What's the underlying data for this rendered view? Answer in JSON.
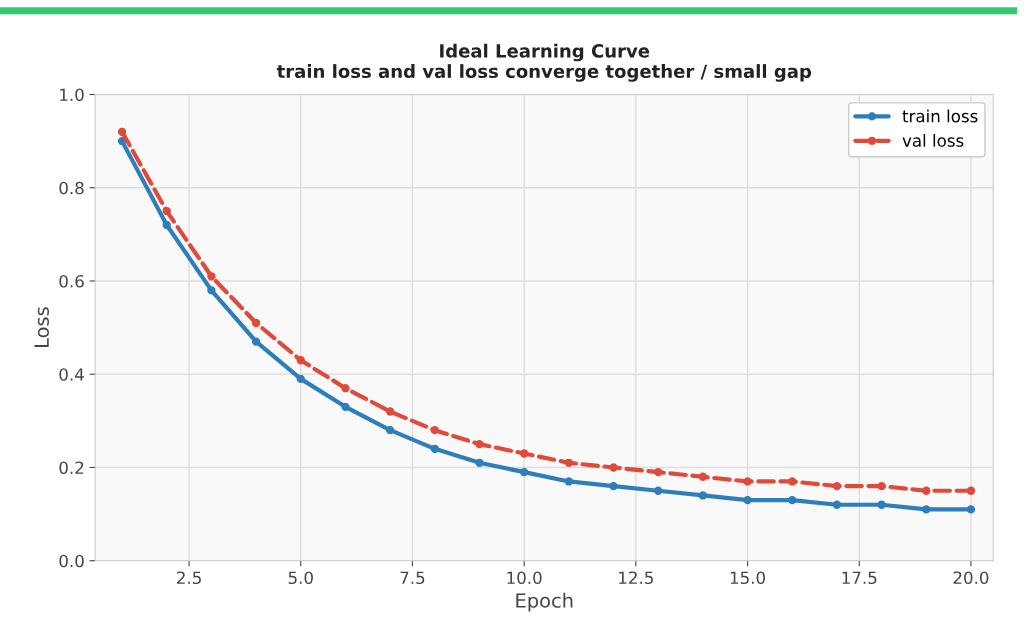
{
  "chart_data": {
    "type": "line",
    "title": "Ideal Learning Curve\ntrain loss and val loss converge together / small gap",
    "xlabel": "Epoch",
    "ylabel": "Loss",
    "x": [
      1,
      2,
      3,
      4,
      5,
      6,
      7,
      8,
      9,
      10,
      11,
      12,
      13,
      14,
      15,
      16,
      17,
      18,
      19,
      20
    ],
    "series": [
      {
        "name": "train loss",
        "color": "#2e7ebc",
        "line_style": "solid",
        "values": [
          0.9,
          0.72,
          0.58,
          0.47,
          0.39,
          0.33,
          0.28,
          0.24,
          0.21,
          0.19,
          0.17,
          0.16,
          0.15,
          0.14,
          0.13,
          0.13,
          0.12,
          0.12,
          0.11,
          0.11
        ]
      },
      {
        "name": "val loss",
        "color": "#e04a3a",
        "line_style": "dashed",
        "values": [
          0.92,
          0.75,
          0.61,
          0.51,
          0.43,
          0.37,
          0.32,
          0.28,
          0.25,
          0.23,
          0.21,
          0.2,
          0.19,
          0.18,
          0.17,
          0.17,
          0.16,
          0.16,
          0.15,
          0.15
        ]
      }
    ],
    "xlim": [
      0.4,
      20.5
    ],
    "xticks": [
      {
        "value": 2.5,
        "label": "2.5"
      },
      {
        "value": 5,
        "label": "5.0"
      },
      {
        "value": 7.5,
        "label": "7.5"
      },
      {
        "value": 10,
        "label": "10.0"
      },
      {
        "value": 12.5,
        "label": "12.5"
      },
      {
        "value": 15,
        "label": "15.0"
      },
      {
        "value": 17.5,
        "label": "17.5"
      },
      {
        "value": 20,
        "label": "20.0"
      }
    ],
    "ylim": [
      0,
      1
    ],
    "yticks": [
      {
        "value": 0,
        "label": "0.0"
      },
      {
        "value": 0.2,
        "label": "0.2"
      },
      {
        "value": 0.4,
        "label": "0.4"
      },
      {
        "value": 0.6,
        "label": "0.6"
      },
      {
        "value": 0.8,
        "label": "0.8"
      },
      {
        "value": 1,
        "label": "1.0"
      }
    ],
    "grid": true,
    "legend": "top right",
    "marker": "circle"
  }
}
